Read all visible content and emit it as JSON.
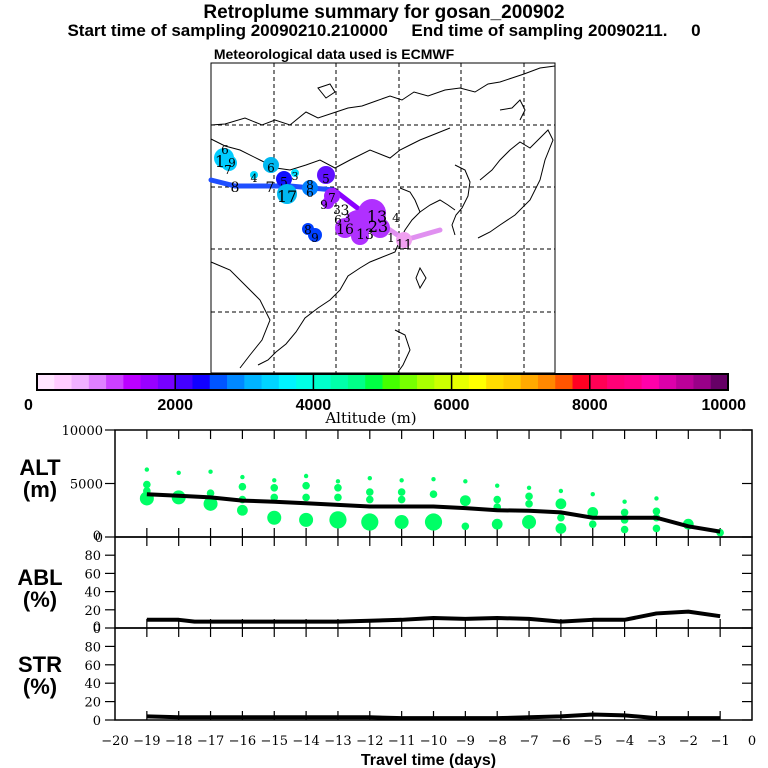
{
  "header": {
    "title": "Retroplume summary for gosan_200902",
    "sampling_line": "Start time of sampling 20090210.210000     End time of sampling 20090211.     0",
    "met_line": "Meteorological data used is ECMWF"
  },
  "map": {
    "grid_style": "dashed",
    "trajectory": [
      {
        "label": "8",
        "color": "#1f4fff"
      },
      {
        "label": "7",
        "color": "#1f4fff"
      },
      {
        "label": "6",
        "color": "#1f4fff"
      },
      {
        "label": "5",
        "color": "#8a00ff"
      },
      {
        "label": "3",
        "color": "#9a20ff"
      },
      {
        "label": "2",
        "color": "#b040ff"
      },
      {
        "label": "1",
        "color": "#e090f0"
      }
    ],
    "clusters": [
      {
        "labels": [
          "6",
          "1",
          "9",
          "7"
        ],
        "color": "#00ccff"
      },
      {
        "labels": [
          "6"
        ],
        "color": "#00b8f0"
      },
      {
        "labels": [
          "4"
        ],
        "color": "#00d8ff"
      },
      {
        "labels": [
          "3"
        ],
        "color": "#00e0ff"
      },
      {
        "labels": [
          "5"
        ],
        "color": "#1010ff"
      },
      {
        "labels": [
          "17"
        ],
        "color": "#00b8f0"
      },
      {
        "labels": [
          "8",
          "6"
        ],
        "color": "#0080ff"
      },
      {
        "labels": [
          "5"
        ],
        "color": "#6010ff"
      },
      {
        "labels": [
          "8",
          "9"
        ],
        "color": "#0040ff"
      },
      {
        "labels": [
          "7",
          "9",
          "3"
        ],
        "color": "#a020ff"
      },
      {
        "labels": [
          "6",
          "3",
          "16",
          "13",
          "23",
          "13",
          "4",
          "1"
        ],
        "color": "#b030ff"
      },
      {
        "labels": [
          "11"
        ],
        "color": "#f0a0f0"
      }
    ]
  },
  "colorbar": {
    "label": "Altitude (m)",
    "ticks": [
      "0",
      "2000",
      "4000",
      "6000",
      "8000",
      "10000"
    ],
    "colors": [
      "#ffe6ff",
      "#ffccff",
      "#f0b0ff",
      "#e080ff",
      "#cc40ff",
      "#bb00ff",
      "#9900ff",
      "#7700ff",
      "#4400ff",
      "#1100ff",
      "#0055ff",
      "#0088ff",
      "#00b4ff",
      "#00d4ff",
      "#00f4ff",
      "#00ffe6",
      "#00ffcc",
      "#00ffaa",
      "#00ff88",
      "#00ff44",
      "#44ff00",
      "#77ff00",
      "#aaff00",
      "#ccff00",
      "#e6ff00",
      "#ffff00",
      "#ffdd00",
      "#ffcc00",
      "#ffaa00",
      "#ff8800",
      "#ff5500",
      "#ff0022",
      "#ff0055",
      "#ff0077",
      "#ff0088",
      "#ff00aa",
      "#dd00aa",
      "#bb0099",
      "#990088",
      "#660066"
    ]
  },
  "chart_data": [
    {
      "type": "scatter",
      "panel": "ALT",
      "ylabel": "ALT\n(m)",
      "ylabel_lines": [
        "ALT",
        "(m)"
      ],
      "ylim": [
        0,
        10000
      ],
      "yticks": [
        "0",
        "5000",
        "10000"
      ],
      "xlim": [
        -20,
        0
      ],
      "point_color": "#00ff66",
      "line_color": "#000000",
      "mean_line": {
        "x": [
          -19,
          -18,
          -17,
          -16,
          -15,
          -14,
          -13,
          -12,
          -11,
          -10,
          -9,
          -8,
          -7,
          -6,
          -5,
          -4,
          -3,
          -2,
          -1
        ],
        "y": [
          4000,
          3850,
          3700,
          3400,
          3300,
          3150,
          3000,
          2850,
          2850,
          2850,
          2700,
          2500,
          2450,
          2300,
          1800,
          1800,
          1800,
          1000,
          500
        ]
      },
      "clusters": [
        {
          "x": -19,
          "points": [
            [
              6300,
              1
            ],
            [
              4900,
              2
            ],
            [
              4300,
              2
            ],
            [
              3600,
              4
            ]
          ]
        },
        {
          "x": -18,
          "points": [
            [
              6000,
              1
            ],
            [
              3700,
              4
            ]
          ]
        },
        {
          "x": -17,
          "points": [
            [
              6100,
              1
            ],
            [
              4100,
              2
            ],
            [
              3100,
              4
            ]
          ]
        },
        {
          "x": -16,
          "points": [
            [
              5600,
              1
            ],
            [
              4700,
              2
            ],
            [
              3500,
              2
            ],
            [
              2500,
              3
            ]
          ]
        },
        {
          "x": -15,
          "points": [
            [
              5300,
              1
            ],
            [
              4600,
              2
            ],
            [
              3700,
              2
            ],
            [
              1800,
              4
            ]
          ]
        },
        {
          "x": -14,
          "points": [
            [
              5700,
              1
            ],
            [
              4800,
              2
            ],
            [
              3700,
              2
            ],
            [
              1600,
              4
            ]
          ]
        },
        {
          "x": -13,
          "points": [
            [
              5200,
              1
            ],
            [
              4600,
              2
            ],
            [
              3700,
              2
            ],
            [
              1600,
              5
            ]
          ]
        },
        {
          "x": -12,
          "points": [
            [
              5500,
              1
            ],
            [
              4200,
              2
            ],
            [
              3500,
              2
            ],
            [
              1400,
              5
            ]
          ]
        },
        {
          "x": -11,
          "points": [
            [
              5300,
              1
            ],
            [
              4200,
              2
            ],
            [
              3500,
              2
            ],
            [
              1400,
              4
            ]
          ]
        },
        {
          "x": -10,
          "points": [
            [
              5400,
              1
            ],
            [
              4000,
              2
            ],
            [
              1400,
              5
            ]
          ]
        },
        {
          "x": -9,
          "points": [
            [
              5200,
              1
            ],
            [
              3400,
              3
            ],
            [
              1000,
              2
            ]
          ]
        },
        {
          "x": -8,
          "points": [
            [
              4800,
              1
            ],
            [
              3500,
              2
            ],
            [
              2800,
              2
            ],
            [
              1200,
              3
            ]
          ]
        },
        {
          "x": -7,
          "points": [
            [
              4600,
              1
            ],
            [
              3800,
              2
            ],
            [
              3100,
              2
            ],
            [
              1400,
              4
            ]
          ]
        },
        {
          "x": -6,
          "points": [
            [
              4300,
              1
            ],
            [
              3100,
              3
            ],
            [
              1800,
              2
            ],
            [
              800,
              3
            ]
          ]
        },
        {
          "x": -5,
          "points": [
            [
              4000,
              1
            ],
            [
              2300,
              3
            ],
            [
              1200,
              2
            ]
          ]
        },
        {
          "x": -4,
          "points": [
            [
              3300,
              1
            ],
            [
              2300,
              2
            ],
            [
              1600,
              2
            ],
            [
              700,
              2
            ]
          ]
        },
        {
          "x": -3,
          "points": [
            [
              3600,
              1
            ],
            [
              2400,
              2
            ],
            [
              1800,
              2
            ],
            [
              800,
              2
            ]
          ]
        },
        {
          "x": -2,
          "points": [
            [
              1200,
              3
            ]
          ]
        },
        {
          "x": -1,
          "points": [
            [
              400,
              2
            ]
          ]
        }
      ]
    },
    {
      "type": "line",
      "panel": "ABL",
      "ylabel_lines": [
        "ABL",
        "(%)"
      ],
      "ylim": [
        0,
        100
      ],
      "yticks": [
        "0",
        "20",
        "40",
        "60",
        "80",
        "0"
      ],
      "xlim": [
        -20,
        0
      ],
      "x": [
        -19,
        -18,
        -17.5,
        -17,
        -16,
        -15,
        -14,
        -13,
        -12,
        -11,
        -10,
        -9,
        -8,
        -7,
        -6,
        -5,
        -4,
        -3,
        -2,
        -1
      ],
      "y": [
        9,
        9,
        7,
        7,
        7,
        7,
        7,
        7,
        8,
        9,
        11,
        10,
        11,
        10,
        7,
        9,
        9,
        16,
        18,
        13
      ]
    },
    {
      "type": "line",
      "panel": "STR",
      "ylabel_lines": [
        "STR",
        "(%)"
      ],
      "ylim": [
        0,
        100
      ],
      "yticks": [
        "0",
        "20",
        "40",
        "60",
        "80",
        "0"
      ],
      "xlim": [
        -20,
        0
      ],
      "xlabel": "Travel time (days)",
      "xticks": [
        "−20",
        "−19",
        "−18",
        "−17",
        "−16",
        "−15",
        "−14",
        "−13",
        "−12",
        "−11",
        "−10",
        "−9",
        "−8",
        "−7",
        "−6",
        "−5",
        "−4",
        "−3",
        "−2",
        "−1",
        "0"
      ],
      "x": [
        -19,
        -18,
        -17,
        -16,
        -15,
        -14,
        -13,
        -12,
        -11,
        -10,
        -9,
        -8,
        -7,
        -6,
        -5,
        -4,
        -3,
        -2,
        -1
      ],
      "y": [
        4,
        3,
        3,
        3,
        3,
        3,
        3,
        3,
        2,
        2,
        2,
        2,
        3,
        4,
        6,
        5,
        2,
        2,
        2
      ]
    }
  ]
}
